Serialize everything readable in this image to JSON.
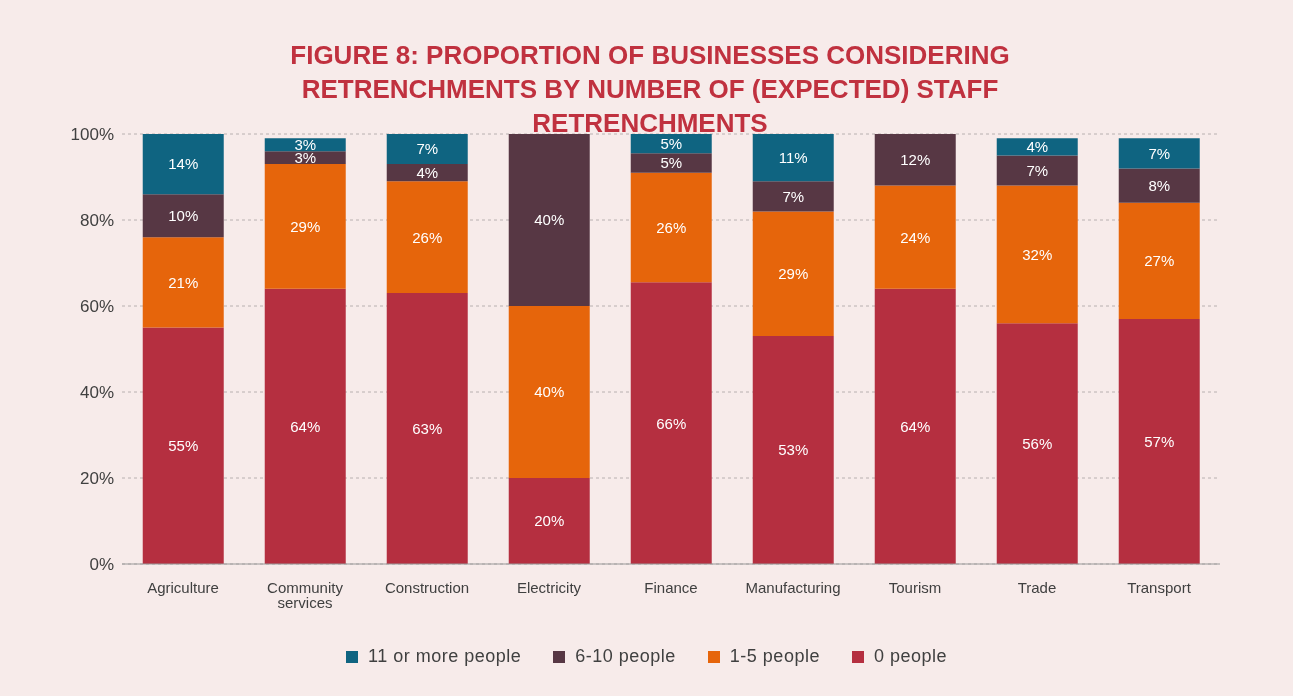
{
  "chart_data": {
    "type": "bar",
    "title": "FIGURE 8: PROPORTION OF BUSINESSES CONSIDERING RETRENCHMENTS BY NUMBER OF (EXPECTED) STAFF RETRENCHMENTS",
    "categories": [
      "Agriculture",
      "Community services",
      "Construction",
      "Electricity",
      "Finance",
      "Manufacturing",
      "Tourism",
      "Trade",
      "Transport"
    ],
    "stacked": true,
    "ylim": [
      0,
      100
    ],
    "yticks": [
      {
        "value": 0,
        "label": "0%"
      },
      {
        "value": 20,
        "label": "20%"
      },
      {
        "value": 40,
        "label": "40%"
      },
      {
        "value": 60,
        "label": "60%"
      },
      {
        "value": 80,
        "label": "80%"
      },
      {
        "value": 100,
        "label": "100%"
      }
    ],
    "grid": "y",
    "legend": "bottom",
    "series": [
      {
        "name": "0 people",
        "color": "#b52f40",
        "values": [
          55,
          64,
          63,
          20,
          65.5,
          53,
          64,
          56,
          57
        ],
        "value_labels": [
          "55%",
          "64%",
          "63%",
          "20%",
          "66%",
          "53%",
          "64%",
          "56%",
          "57%"
        ]
      },
      {
        "name": "1-5 people",
        "color": "#e6650b",
        "values": [
          21,
          29,
          26,
          40,
          25.5,
          29,
          24,
          32,
          27
        ],
        "value_labels": [
          "21%",
          "29%",
          "26%",
          "40%",
          "26%",
          "29%",
          "24%",
          "32%",
          "27%"
        ]
      },
      {
        "name": "6-10 people",
        "color": "#573744",
        "values": [
          10,
          3,
          4,
          40,
          4.5,
          7,
          12,
          7,
          8
        ],
        "value_labels": [
          "10%",
          "3%",
          "4%",
          "40%",
          "5%",
          "7%",
          "12%",
          "7%",
          "8%"
        ]
      },
      {
        "name": "11 or more people",
        "color": "#0f6481",
        "values": [
          14,
          3,
          7,
          null,
          4.5,
          11,
          null,
          4,
          7
        ],
        "value_labels": [
          "14%",
          "3%",
          "7%",
          null,
          "5%",
          "11%",
          null,
          "4%",
          "7%"
        ]
      }
    ]
  }
}
